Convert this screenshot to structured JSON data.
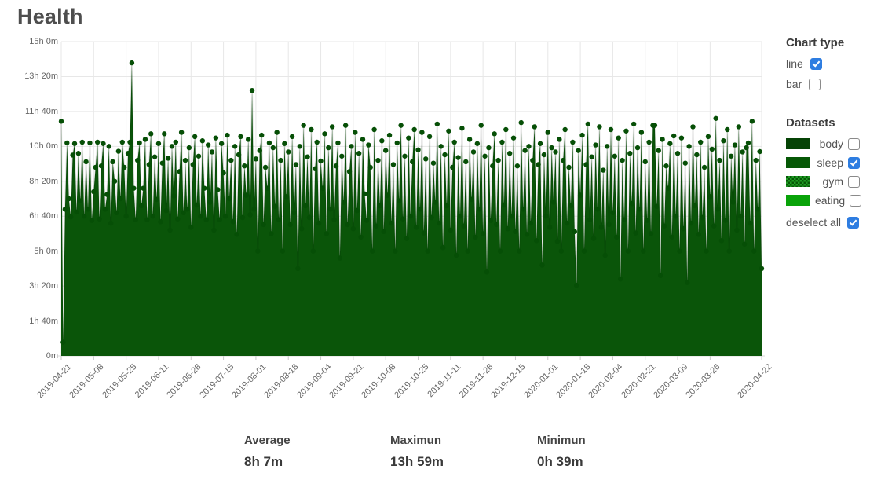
{
  "page": {
    "title": "Health"
  },
  "chart_type_panel": {
    "title": "Chart type",
    "options": [
      {
        "label": "line",
        "checked": true
      },
      {
        "label": "bar",
        "checked": false
      }
    ]
  },
  "datasets_panel": {
    "title": "Datasets",
    "items": [
      {
        "label": "body",
        "checked": false,
        "swatch": "#054305",
        "pattern": "solid"
      },
      {
        "label": "sleep",
        "checked": true,
        "swatch": "#065806",
        "pattern": "solid"
      },
      {
        "label": "gym",
        "checked": false,
        "swatch": "#065806",
        "pattern": "dots",
        "pattern_color": "#1f9b23"
      },
      {
        "label": "eating",
        "checked": false,
        "swatch": "#09a309",
        "pattern": "solid"
      }
    ],
    "deselect_all": {
      "label": "deselect all",
      "checked": true
    }
  },
  "stats": [
    {
      "label": "Average",
      "value": "8h 7m"
    },
    {
      "label": "Maximun",
      "value": "13h 59m"
    },
    {
      "label": "Minimun",
      "value": "0h 39m"
    }
  ],
  "chart_data": {
    "type": "line",
    "title": "Health",
    "series_name": "sleep",
    "unit": "minutes per day",
    "start_date": "2019-04-21",
    "end_date": "2020-04-22",
    "ylim": [
      0,
      900
    ],
    "grid": true,
    "legend_position": "right",
    "fill_color": "#0a5509",
    "point_color": "#064f06",
    "line_color": "rgba(0,0,0,0.10)",
    "grid_color": "#e7e7e7",
    "tick_color": "#c9c9c9",
    "axis_line_color": "#d8d8d8",
    "y_tick_minutes": [
      900,
      800,
      700,
      600,
      500,
      400,
      300,
      200,
      100,
      0
    ],
    "y_tick_labels": [
      "15h 0m",
      "13h 20m",
      "11h 40m",
      "10h 0m",
      "8h 20m",
      "6h 40m",
      "5h 0m",
      "3h 20m",
      "1h 40m",
      "0m"
    ],
    "x_tick_days": [
      0,
      17,
      34,
      51,
      68,
      85,
      102,
      119,
      136,
      153,
      170,
      187,
      204,
      221,
      238,
      255,
      272,
      289,
      306,
      323,
      340,
      367
    ],
    "x_tick_labels": [
      "2019-04-21",
      "2019-05-08",
      "2019-05-25",
      "2019-06-11",
      "2019-06-28",
      "2019-07-15",
      "2019-08-01",
      "2019-08-18",
      "2019-09-04",
      "2019-09-21",
      "2019-10-08",
      "2019-10-25",
      "2019-11-11",
      "2019-11-28",
      "2019-12-15",
      "2020-01-01",
      "2020-01-18",
      "2020-02-04",
      "2020-02-21",
      "2020-03-09",
      "2020-03-26",
      "2020-04-22"
    ],
    "summary": {
      "average_minutes": 487,
      "maximum_minutes": 839,
      "minimum_minutes": 39
    },
    "values": [
      672,
      39,
      420,
      610,
      450,
      398,
      575,
      608,
      412,
      580,
      444,
      612,
      400,
      556,
      420,
      610,
      388,
      470,
      540,
      612,
      392,
      544,
      608,
      420,
      462,
      600,
      380,
      556,
      500,
      410,
      586,
      450,
      612,
      540,
      400,
      580,
      612,
      839,
      480,
      390,
      560,
      610,
      430,
      480,
      620,
      390,
      548,
      636,
      400,
      570,
      448,
      608,
      384,
      552,
      636,
      416,
      566,
      360,
      600,
      458,
      612,
      392,
      528,
      640,
      410,
      560,
      420,
      596,
      368,
      548,
      628,
      432,
      572,
      400,
      616,
      480,
      390,
      604,
      440,
      584,
      360,
      624,
      476,
      390,
      608,
      524,
      400,
      632,
      450,
      560,
      384,
      600,
      348,
      576,
      628,
      396,
      544,
      460,
      620,
      404,
      760,
      420,
      564,
      300,
      588,
      632,
      376,
      540,
      480,
      610,
      350,
      596,
      428,
      640,
      390,
      560,
      300,
      608,
      456,
      584,
      376,
      628,
      410,
      548,
      250,
      600,
      364,
      660,
      430,
      570,
      396,
      648,
      300,
      536,
      612,
      380,
      558,
      480,
      636,
      350,
      596,
      420,
      656,
      390,
      544,
      610,
      280,
      572,
      440,
      660,
      376,
      528,
      600,
      364,
      640,
      416,
      580,
      340,
      620,
      464,
      388,
      604,
      540,
      300,
      648,
      372,
      560,
      430,
      616,
      356,
      588,
      460,
      632,
      380,
      548,
      300,
      610,
      444,
      660,
      392,
      572,
      336,
      624,
      400,
      556,
      648,
      368,
      590,
      420,
      640,
      352,
      564,
      300,
      628,
      396,
      552,
      440,
      664,
      380,
      600,
      310,
      576,
      430,
      644,
      360,
      540,
      612,
      288,
      568,
      400,
      652,
      372,
      556,
      300,
      620,
      448,
      584,
      340,
      608,
      420,
      660,
      350,
      572,
      240,
      596,
      388,
      544,
      636,
      376,
      560,
      300,
      612,
      432,
      648,
      364,
      580,
      400,
      624,
      356,
      544,
      300,
      668,
      420,
      588,
      348,
      600,
      380,
      560,
      656,
      330,
      548,
      608,
      260,
      576,
      400,
      640,
      368,
      596,
      440,
      584,
      328,
      620,
      300,
      560,
      648,
      380,
      540,
      430,
      612,
      356,
      202,
      588,
      460,
      632,
      300,
      548,
      664,
      390,
      570,
      336,
      604,
      420,
      656,
      368,
      532,
      288,
      600,
      376,
      648,
      410,
      572,
      340,
      624,
      220,
      560,
      390,
      644,
      300,
      580,
      436,
      664,
      352,
      596,
      420,
      640,
      300,
      556,
      388,
      612,
      350,
      660,
      660,
      428,
      588,
      230,
      620,
      372,
      544,
      480,
      608,
      340,
      630,
      400,
      580,
      300,
      624,
      364,
      552,
      210,
      600,
      380,
      656,
      430,
      576,
      348,
      612,
      396,
      540,
      300,
      628,
      456,
      592,
      372,
      680,
      420,
      560,
      330,
      616,
      388,
      648,
      300,
      572,
      440,
      604,
      360,
      656,
      400,
      584,
      320,
      596,
      610,
      380,
      672,
      300,
      560,
      420,
      585,
      250
    ]
  }
}
